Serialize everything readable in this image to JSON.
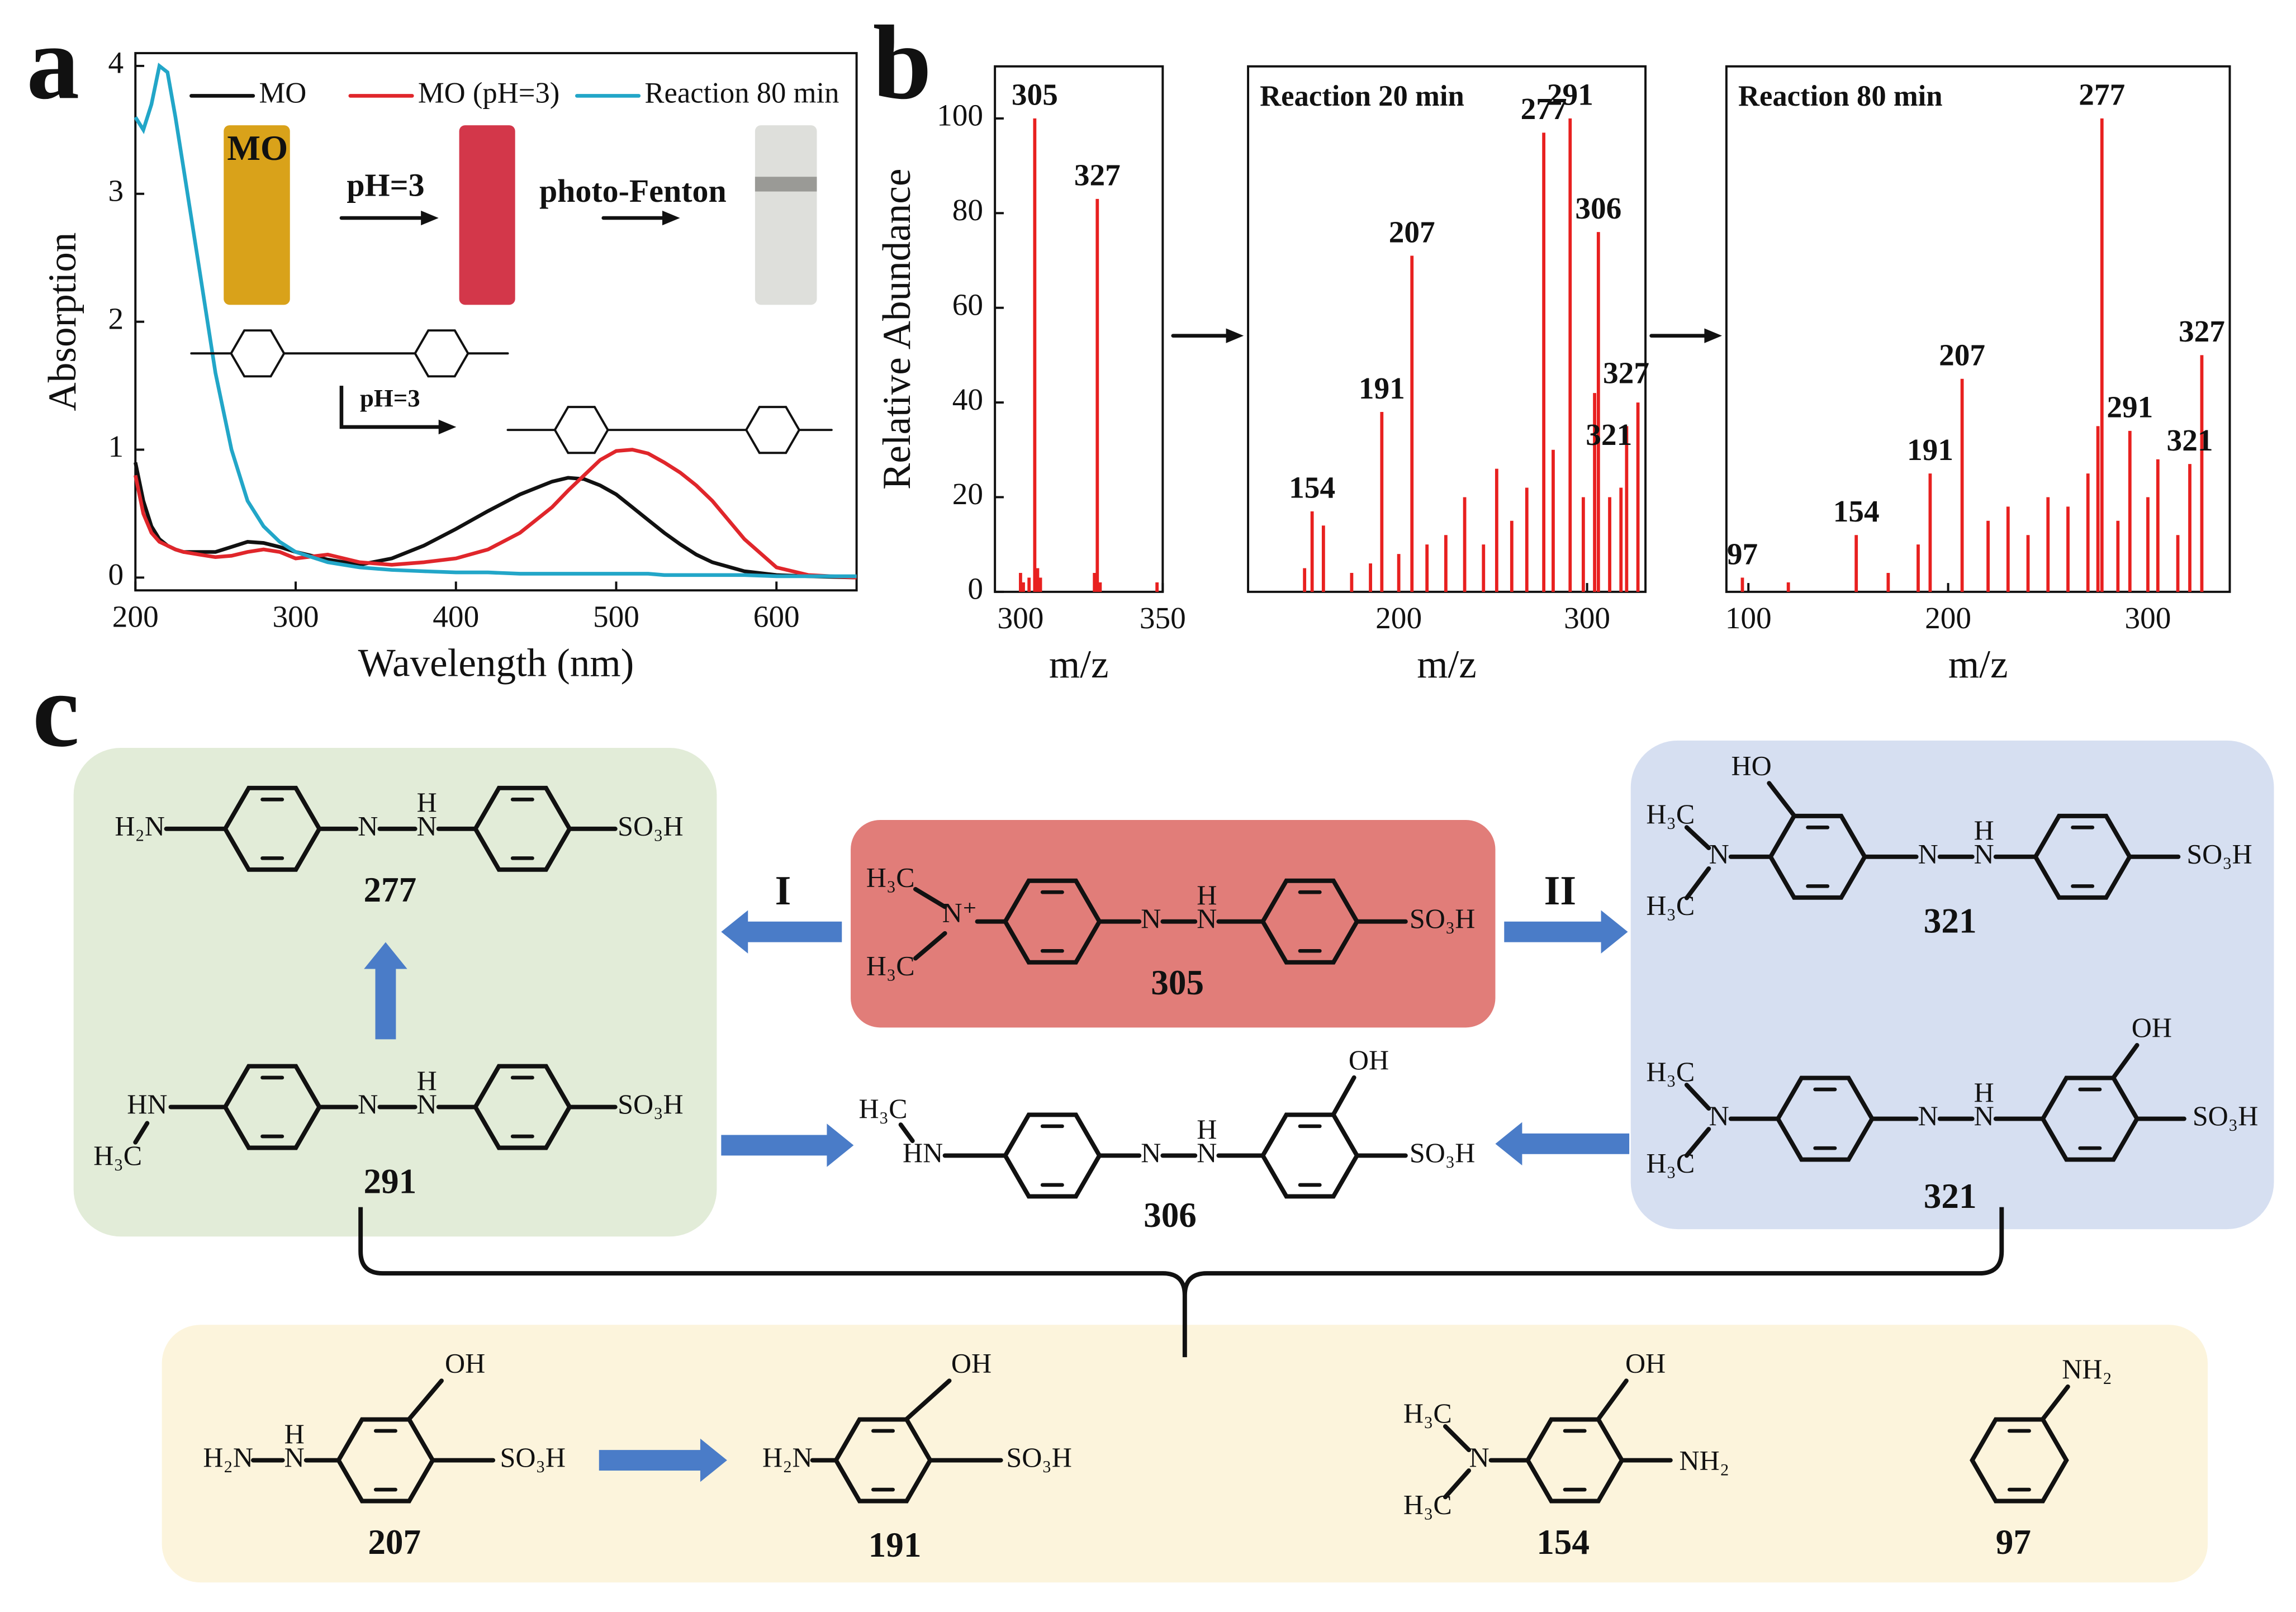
{
  "chart_data": [
    {
      "type": "line",
      "panel": "a",
      "xlabel": "Wavelength (nm)",
      "ylabel": "Absorption",
      "xlim": [
        200,
        650
      ],
      "ylim": [
        -0.1,
        4.1
      ],
      "xticks": [
        200,
        300,
        400,
        500,
        600
      ],
      "yticks": [
        0,
        1,
        2,
        3,
        4
      ],
      "x": [
        200,
        205,
        210,
        215,
        220,
        225,
        230,
        240,
        250,
        260,
        270,
        280,
        290,
        300,
        320,
        340,
        360,
        380,
        400,
        420,
        440,
        460,
        470,
        480,
        490,
        500,
        510,
        520,
        530,
        540,
        550,
        560,
        580,
        600,
        620,
        650
      ],
      "series": [
        {
          "name": "MO",
          "color": "#111111",
          "values": [
            0.9,
            0.6,
            0.4,
            0.3,
            0.25,
            0.22,
            0.2,
            0.2,
            0.2,
            0.24,
            0.28,
            0.27,
            0.24,
            0.2,
            0.14,
            0.1,
            0.15,
            0.25,
            0.38,
            0.52,
            0.65,
            0.75,
            0.78,
            0.77,
            0.72,
            0.65,
            0.55,
            0.45,
            0.35,
            0.26,
            0.18,
            0.12,
            0.05,
            0.02,
            0.01,
            0
          ]
        },
        {
          "name": "MO (pH=3)",
          "color": "#e0262b",
          "values": [
            0.8,
            0.5,
            0.35,
            0.28,
            0.25,
            0.22,
            0.2,
            0.18,
            0.16,
            0.17,
            0.2,
            0.22,
            0.2,
            0.15,
            0.18,
            0.12,
            0.1,
            0.12,
            0.15,
            0.22,
            0.35,
            0.55,
            0.68,
            0.8,
            0.92,
            0.99,
            1.0,
            0.97,
            0.9,
            0.82,
            0.72,
            0.6,
            0.3,
            0.08,
            0.02,
            0
          ]
        },
        {
          "name": "Reaction 80 min",
          "color": "#22a6c8",
          "values": [
            3.6,
            3.5,
            3.7,
            4.0,
            3.95,
            3.6,
            3.2,
            2.4,
            1.6,
            1.0,
            0.6,
            0.4,
            0.28,
            0.2,
            0.12,
            0.08,
            0.06,
            0.05,
            0.04,
            0.04,
            0.03,
            0.03,
            0.03,
            0.03,
            0.03,
            0.03,
            0.03,
            0.03,
            0.02,
            0.02,
            0.02,
            0.02,
            0.02,
            0.01,
            0.01,
            0.01
          ]
        }
      ],
      "annotations": [
        "MO",
        "pH=3",
        "photo-Fenton",
        "pH=3"
      ]
    },
    {
      "type": "bar",
      "panel": "b",
      "xlabel": "m/z",
      "ylabel": "Relative Abundance",
      "color": "#e8201f",
      "xlim": [
        291,
        350
      ],
      "ylim": [
        0,
        111
      ],
      "xticks": [
        300,
        350
      ],
      "yticks": [
        0,
        20,
        40,
        60,
        80,
        100
      ],
      "x": [
        300,
        301,
        303,
        305,
        306,
        307,
        326,
        327,
        328,
        348
      ],
      "values": [
        4,
        2,
        3,
        100,
        5,
        3,
        4,
        83,
        2,
        2
      ],
      "peak_labels": [
        "305",
        "327"
      ]
    },
    {
      "type": "bar",
      "title": "Reaction 20 min",
      "xlabel": "m/z",
      "color": "#e8201f",
      "xlim": [
        120,
        331
      ],
      "ylim": [
        0,
        111
      ],
      "xticks": [
        200,
        300
      ],
      "x": [
        150,
        154,
        160,
        175,
        185,
        191,
        200,
        207,
        215,
        225,
        235,
        245,
        252,
        260,
        268,
        277,
        282,
        291,
        298,
        304,
        306,
        312,
        318,
        321,
        327
      ],
      "values": [
        5,
        17,
        14,
        4,
        6,
        38,
        8,
        71,
        10,
        12,
        20,
        10,
        26,
        15,
        22,
        97,
        30,
        100,
        20,
        42,
        76,
        20,
        22,
        35,
        40
      ],
      "peak_labels": [
        "154",
        "191",
        "207",
        "277",
        "291",
        "306",
        "327",
        "321"
      ]
    },
    {
      "type": "bar",
      "title": "Reaction 80 min",
      "xlabel": "m/z",
      "color": "#e8201f",
      "xlim": [
        89,
        341
      ],
      "ylim": [
        0,
        111
      ],
      "xticks": [
        100,
        200,
        300
      ],
      "x": [
        97,
        120,
        154,
        170,
        185,
        191,
        207,
        220,
        230,
        240,
        250,
        260,
        270,
        275,
        277,
        285,
        291,
        300,
        305,
        315,
        321,
        327
      ],
      "values": [
        3,
        2,
        12,
        4,
        10,
        25,
        45,
        15,
        18,
        12,
        20,
        18,
        25,
        35,
        100,
        15,
        34,
        20,
        28,
        12,
        27,
        50
      ],
      "peak_labels": [
        "97",
        "154",
        "191",
        "207",
        "277",
        "291",
        "321",
        "327"
      ]
    }
  ],
  "diagram": {
    "panel": "c",
    "pathways": [
      "I",
      "II"
    ],
    "compounds": [
      {
        "label": "277",
        "groups": [
          "H₂N",
          "N",
          "N",
          "H",
          "SO₃H"
        ]
      },
      {
        "label": "291",
        "groups": [
          "HN",
          "H₃C",
          "N",
          "N",
          "H",
          "SO₃H"
        ]
      },
      {
        "label": "305",
        "groups": [
          "H₃C",
          "N⁺",
          "H₃C",
          "N",
          "N",
          "H",
          "SO₃H"
        ]
      },
      {
        "label": "306",
        "groups": [
          "H₃C",
          "HN",
          "N",
          "N",
          "H",
          "OH",
          "SO₃H"
        ]
      },
      {
        "label": "321",
        "groups": [
          "HO",
          "H₃C",
          "N",
          "H₃C",
          "N",
          "N",
          "H",
          "SO₃H"
        ]
      },
      {
        "label": "321",
        "groups": [
          "OH",
          "H₃C",
          "N",
          "H₃C",
          "N",
          "N",
          "H",
          "SO₃H"
        ]
      },
      {
        "label": "207",
        "groups": [
          "H₂N",
          "N",
          "H",
          "OH",
          "SO₃H"
        ]
      },
      {
        "label": "191",
        "groups": [
          "H₂N",
          "OH",
          "SO₃H"
        ]
      },
      {
        "label": "154",
        "groups": [
          "H₃C",
          "N",
          "H₃C",
          "OH",
          "NH₂"
        ]
      },
      {
        "label": "97",
        "groups": [
          "NH₂"
        ]
      }
    ]
  }
}
